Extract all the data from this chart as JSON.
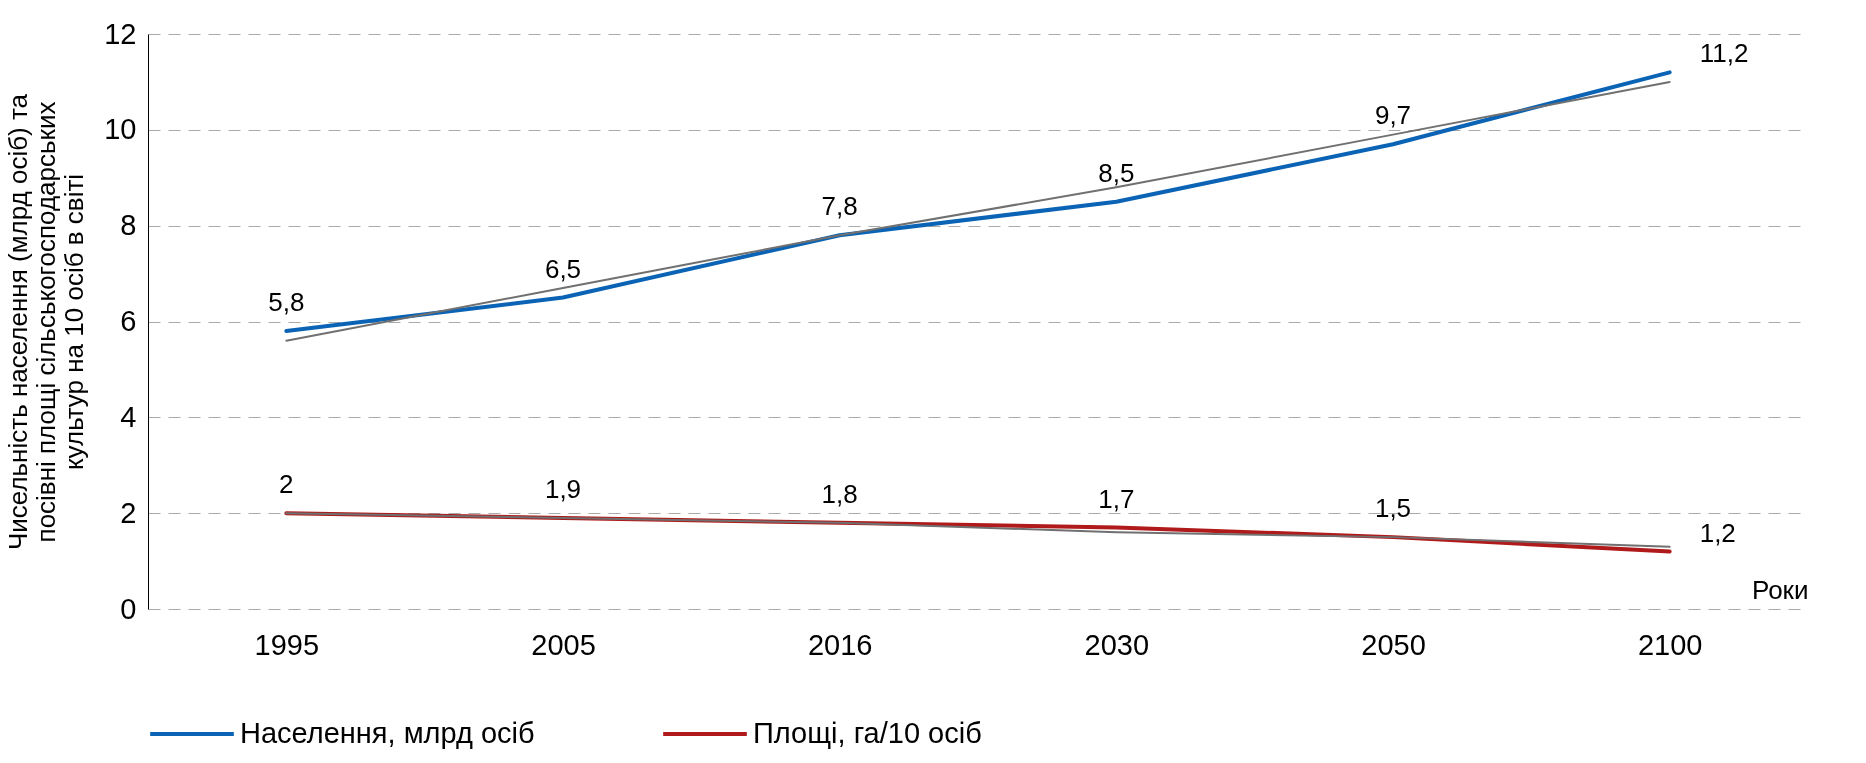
{
  "chart_data": {
    "type": "line",
    "categories": [
      "1995",
      "2005",
      "2016",
      "2030",
      "2050",
      "2100"
    ],
    "xlabel": "Роки",
    "ylabel": "Чисельність населення (млрд осіб) та посівні площі сільськогосподарських культур на 10 осіб в світі",
    "ylim": [
      0,
      12
    ],
    "yticks": [
      0,
      2,
      4,
      6,
      8,
      10,
      12
    ],
    "grid": "y",
    "legend": "bottom",
    "series": [
      {
        "name": "Населення, млрд осіб",
        "color": "#0a63b4",
        "values": [
          5.8,
          6.5,
          7.8,
          8.5,
          9.7,
          11.2
        ],
        "value_labels": [
          "5,8",
          "6,5",
          "7,8",
          "8,5",
          "9,7",
          "11,2"
        ]
      },
      {
        "name": "Площі, га/10 осіб",
        "color": "#b01a1a",
        "values": [
          2,
          1.9,
          1.8,
          1.7,
          1.5,
          1.2
        ],
        "value_labels": [
          "2",
          "1,9",
          "1,8",
          "1,7",
          "1,5",
          "1,2"
        ]
      },
      {
        "type": "line",
        "color": "#707070",
        "values": [
          5.6,
          6.7,
          7.8,
          8.8,
          9.9,
          11.0
        ]
      },
      {
        "type": "line",
        "color": "#707070",
        "values": [
          2.0,
          1.9,
          1.8,
          1.6,
          1.5,
          1.3
        ]
      }
    ]
  }
}
